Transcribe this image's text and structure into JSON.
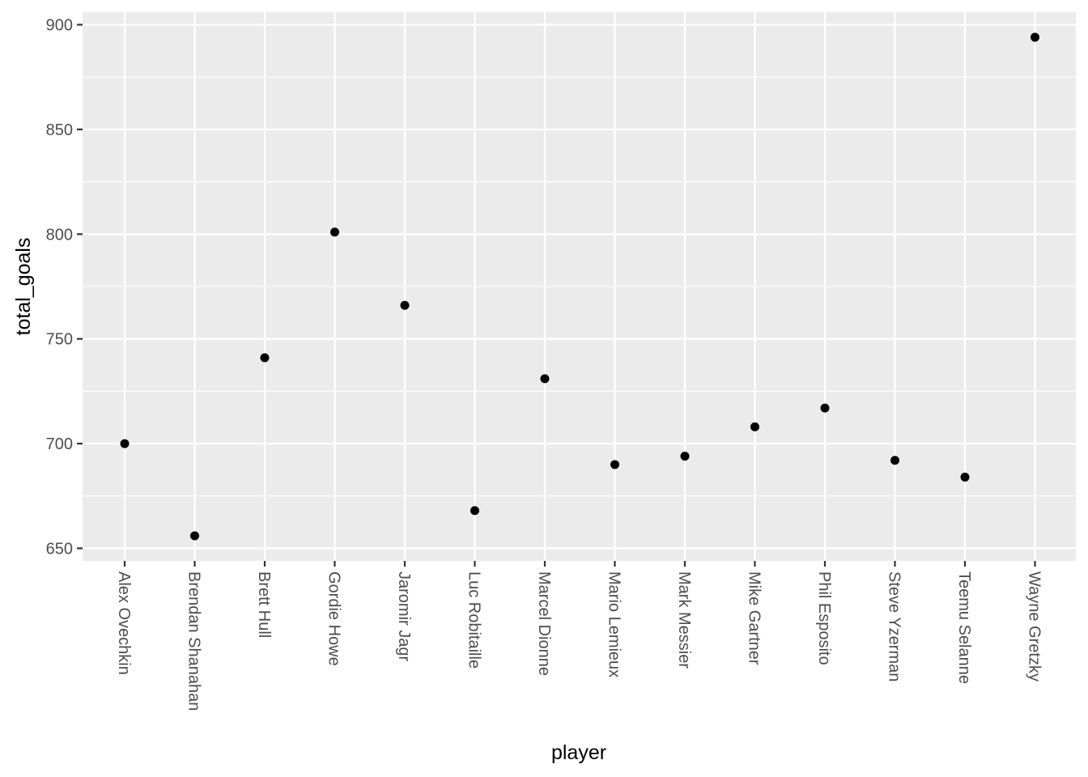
{
  "chart_data": {
    "type": "scatter",
    "title": "",
    "xlabel": "player",
    "ylabel": "total_goals",
    "ylim": [
      644,
      906
    ],
    "yticks": [
      650,
      700,
      750,
      800,
      850,
      900
    ],
    "categories": [
      "Alex Ovechkin",
      "Brendan Shanahan",
      "Brett Hull",
      "Gordie Howe",
      "Jaromir Jagr",
      "Luc Robitaille",
      "Marcel Dionne",
      "Mario Lemieux",
      "Mark Messier",
      "Mike Gartner",
      "Phil Esposito",
      "Steve Yzerman",
      "Teemu Selanne",
      "Wayne Gretzky"
    ],
    "values": [
      700,
      656,
      741,
      801,
      766,
      668,
      731,
      690,
      694,
      708,
      717,
      692,
      684,
      894
    ],
    "colors": {
      "panel": "#ebebeb",
      "grid": "#ffffff",
      "point": "#000000",
      "tick": "#333333",
      "tick_label": "#4d4d4d"
    }
  }
}
